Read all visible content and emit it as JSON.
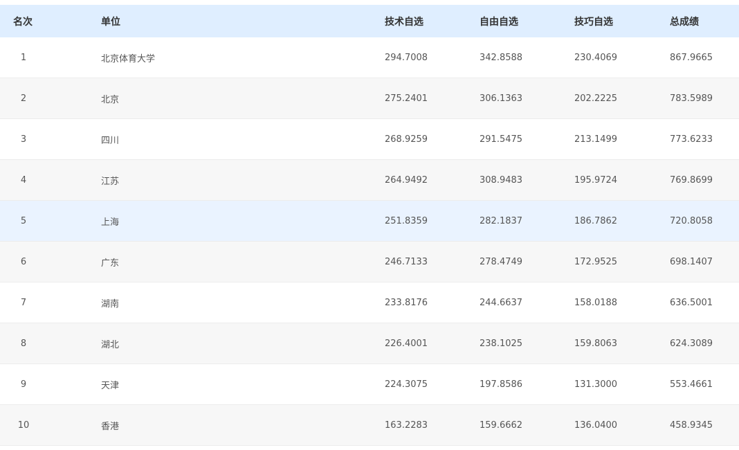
{
  "table": {
    "header": [
      "名次",
      "单位",
      "技术自选",
      "自由自选",
      "技巧自选",
      "总成绩"
    ],
    "rows": [
      [
        "1",
        "北京体育大学",
        "294.7008",
        "342.8588",
        "230.4069",
        "867.9665"
      ],
      [
        "2",
        "北京",
        "275.2401",
        "306.1363",
        "202.2225",
        "783.5989"
      ],
      [
        "3",
        "四川",
        "268.9259",
        "291.5475",
        "213.1499",
        "773.6233"
      ],
      [
        "4",
        "江苏",
        "264.9492",
        "308.9483",
        "195.9724",
        "769.8699"
      ],
      [
        "5",
        "上海",
        "251.8359",
        "282.1837",
        "186.7862",
        "720.8058"
      ],
      [
        "6",
        "广东",
        "246.7133",
        "278.4749",
        "172.9525",
        "698.1407"
      ],
      [
        "7",
        "湖南",
        "233.8176",
        "244.6637",
        "158.0188",
        "636.5001"
      ],
      [
        "8",
        "湖北",
        "226.4001",
        "238.1025",
        "159.8063",
        "624.3089"
      ],
      [
        "9",
        "天津",
        "224.3075",
        "197.8586",
        "131.3000",
        "553.4661"
      ],
      [
        "10",
        "香港",
        "163.2283",
        "159.6662",
        "136.0400",
        "458.9345"
      ]
    ]
  }
}
